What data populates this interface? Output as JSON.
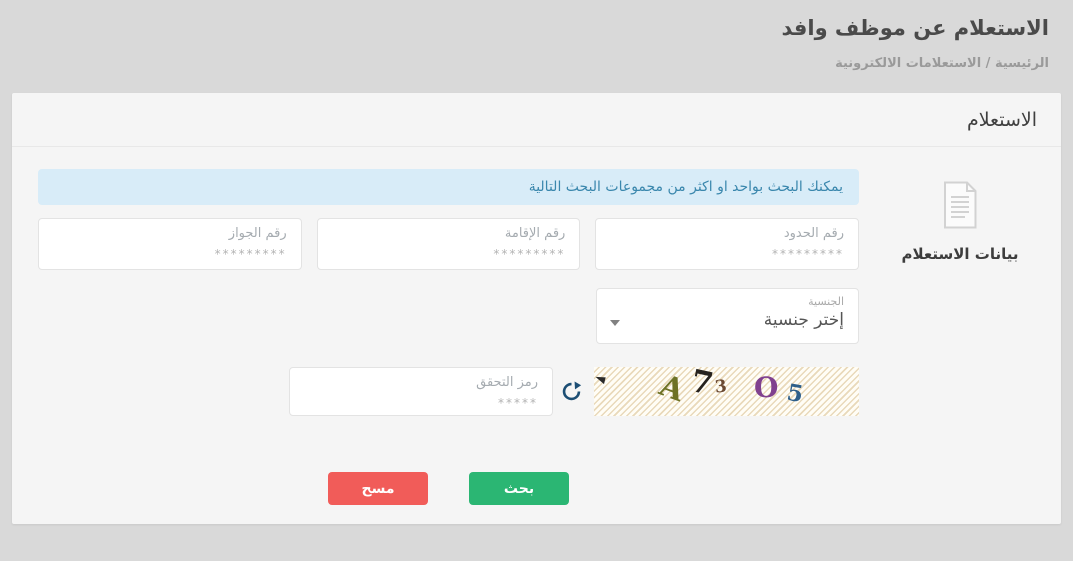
{
  "page": {
    "title": "الاستعلام عن موظف وافد",
    "breadcrumb": "الرئيسية / الاستعلامات الالكترونية"
  },
  "card": {
    "title": "الاستعلام",
    "side_panel": {
      "icon": "document-icon",
      "label": "بيانات الاستعلام"
    },
    "info_message": "يمكنك البحث بواحد او اكثر من مجموعات البحث التالية"
  },
  "form": {
    "fields": [
      {
        "key": "border_number",
        "label": "رقم الحدود",
        "placeholder": "*********",
        "value": ""
      },
      {
        "key": "residence_number",
        "label": "رقم الإقامة",
        "placeholder": "*********",
        "value": ""
      },
      {
        "key": "passport_number",
        "label": "رقم الجواز",
        "placeholder": "*********",
        "value": ""
      }
    ],
    "nationality": {
      "label": "الجنسية",
      "selected_option": "إختر جنسية"
    },
    "captcha_input": {
      "label": "رمز التحقق",
      "placeholder": "*****",
      "value": ""
    }
  },
  "captcha": {
    "refresh_icon": "refresh-icon",
    "characters": [
      {
        "char": "A",
        "color": "#6d7226"
      },
      {
        "char": "7",
        "color": "#26221e"
      },
      {
        "char": "3",
        "color": "#6b4a33"
      },
      {
        "char": "O",
        "color": "#80418f"
      },
      {
        "char": "5",
        "color": "#2e5f8a"
      }
    ]
  },
  "buttons": {
    "search": "بحث",
    "clear": "مسح"
  },
  "colors": {
    "page_bg": "#d9d9d9",
    "card_bg": "#f5f5f5",
    "info_bg": "#d8ecf8",
    "info_text": "#3a87ad",
    "search_button": "#2bb673",
    "clear_button": "#f15c59",
    "refresh_icon": "#1c4e74"
  }
}
